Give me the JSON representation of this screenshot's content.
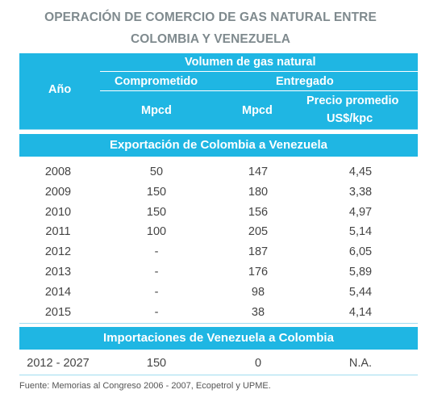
{
  "title": {
    "line1": "OPERACIÓN DE COMERCIO DE GAS NATURAL ENTRE",
    "line2": "COLOMBIA Y VENEZUELA"
  },
  "header": {
    "anio": "Año",
    "volumen": "Volumen de gas natural",
    "comprometido": "Comprometido",
    "entregado": "Entregado",
    "mpcd_comprometido": "Mpcd",
    "mpcd_entregado": "Mpcd",
    "precio_line1": "Precio promedio",
    "precio_line2": "US$/kpc"
  },
  "exportacion": {
    "label": "Exportación de Colombia a Venezuela",
    "rows": [
      {
        "year": "2008",
        "comprometido": "50",
        "entregado": "147",
        "precio": "4,45"
      },
      {
        "year": "2009",
        "comprometido": "150",
        "entregado": "180",
        "precio": "3,38"
      },
      {
        "year": "2010",
        "comprometido": "150",
        "entregado": "156",
        "precio": "4,97"
      },
      {
        "year": "2011",
        "comprometido": "100",
        "entregado": "205",
        "precio": "5,14"
      },
      {
        "year": "2012",
        "comprometido": "-",
        "entregado": "187",
        "precio": "6,05"
      },
      {
        "year": "2013",
        "comprometido": "-",
        "entregado": "176",
        "precio": "5,89"
      },
      {
        "year": "2014",
        "comprometido": "-",
        "entregado": "98",
        "precio": "5,44"
      },
      {
        "year": "2015",
        "comprometido": "-",
        "entregado": "38",
        "precio": "4,14"
      }
    ]
  },
  "importacion": {
    "label": "Importaciones de Venezuela a Colombia",
    "row": {
      "year": "2012 - 2027",
      "comprometido": "150",
      "entregado": "0",
      "precio": "N.A."
    }
  },
  "footer": "Fuente: Memorias al Congreso 2006 - 2007, Ecopetrol y UPME."
}
